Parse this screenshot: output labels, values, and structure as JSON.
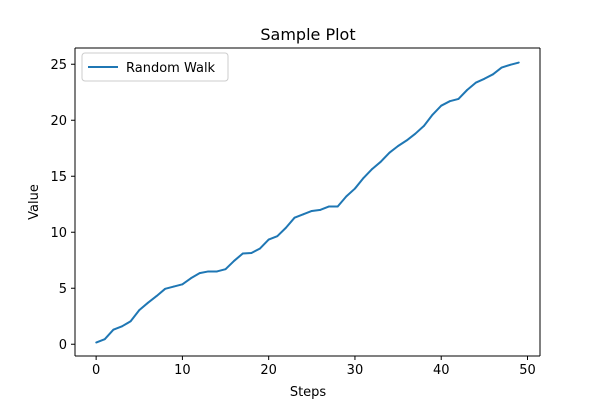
{
  "chart_data": {
    "type": "line",
    "title": "Sample Plot",
    "xlabel": "Steps",
    "ylabel": "Value",
    "xlim": [
      -2.45,
      51.45
    ],
    "ylim": [
      -1.05,
      26.45
    ],
    "xticks": [
      0,
      10,
      20,
      30,
      40,
      50
    ],
    "yticks": [
      0,
      5,
      10,
      15,
      20,
      25
    ],
    "grid": false,
    "legend_position": "top-left",
    "series": [
      {
        "name": "Random Walk",
        "color": "#1f77b4",
        "x": [
          0,
          1,
          2,
          3,
          4,
          5,
          6,
          7,
          8,
          9,
          10,
          11,
          12,
          13,
          14,
          15,
          16,
          17,
          18,
          19,
          20,
          21,
          22,
          23,
          24,
          25,
          26,
          27,
          28,
          29,
          30,
          31,
          32,
          33,
          34,
          35,
          36,
          37,
          38,
          39,
          40,
          41,
          42,
          43,
          44,
          45,
          46,
          47,
          48,
          49
        ],
        "y": [
          0.15,
          0.45,
          1.3,
          1.6,
          2.05,
          3.05,
          3.7,
          4.3,
          4.95,
          5.15,
          5.35,
          5.9,
          6.35,
          6.5,
          6.5,
          6.7,
          7.45,
          8.1,
          8.15,
          8.55,
          9.35,
          9.65,
          10.4,
          11.3,
          11.6,
          11.9,
          12.0,
          12.3,
          12.3,
          13.2,
          13.9,
          14.85,
          15.65,
          16.3,
          17.1,
          17.7,
          18.2,
          18.8,
          19.5,
          20.5,
          21.3,
          21.7,
          21.9,
          22.7,
          23.35,
          23.7,
          24.1,
          24.7,
          24.95,
          25.15
        ]
      }
    ]
  }
}
